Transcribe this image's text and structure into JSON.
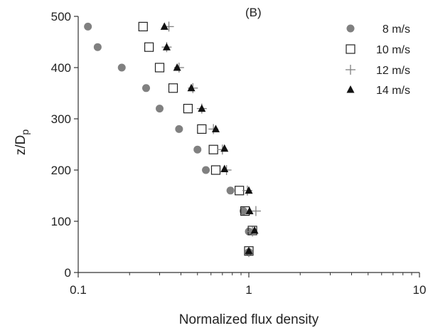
{
  "chart_data": {
    "type": "scatter",
    "panel_label": "(B)",
    "xlabel": "Normalized flux density",
    "ylabel_main": "z/D",
    "ylabel_sub": "p",
    "x_scale": "log",
    "xlim": [
      0.1,
      10
    ],
    "ylim": [
      0,
      500
    ],
    "x_ticks": [
      {
        "value": 0.1,
        "label": "0.1"
      },
      {
        "value": 1,
        "label": "1"
      },
      {
        "value": 10,
        "label": "10"
      }
    ],
    "y_ticks": [
      {
        "value": 0,
        "label": "0"
      },
      {
        "value": 100,
        "label": "100"
      },
      {
        "value": 200,
        "label": "200"
      },
      {
        "value": 300,
        "label": "300"
      },
      {
        "value": 400,
        "label": "400"
      },
      {
        "value": 500,
        "label": "500"
      }
    ],
    "grid": false,
    "legend_position": "top-right",
    "series": [
      {
        "name": "8 m/s",
        "marker": "filled-circle",
        "color": "#808080",
        "points": [
          [
            1.0,
            40
          ],
          [
            1.0,
            80
          ],
          [
            0.93,
            120
          ],
          [
            0.78,
            160
          ],
          [
            0.56,
            200
          ],
          [
            0.5,
            240
          ],
          [
            0.39,
            280
          ],
          [
            0.3,
            320
          ],
          [
            0.25,
            360
          ],
          [
            0.18,
            400
          ],
          [
            0.13,
            440
          ],
          [
            0.114,
            480
          ]
        ]
      },
      {
        "name": "10 m/s",
        "marker": "open-square",
        "color": "#222222",
        "points": [
          [
            1.0,
            42
          ],
          [
            1.05,
            82
          ],
          [
            0.95,
            120
          ],
          [
            0.88,
            160
          ],
          [
            0.64,
            200
          ],
          [
            0.62,
            240
          ],
          [
            0.53,
            280
          ],
          [
            0.44,
            320
          ],
          [
            0.36,
            360
          ],
          [
            0.3,
            400
          ],
          [
            0.26,
            440
          ],
          [
            0.24,
            480
          ]
        ]
      },
      {
        "name": "12 m/s",
        "marker": "plus",
        "color": "#808080",
        "points": [
          [
            1.0,
            40
          ],
          [
            1.05,
            80
          ],
          [
            1.1,
            120
          ],
          [
            0.98,
            160
          ],
          [
            0.74,
            200
          ],
          [
            0.7,
            240
          ],
          [
            0.62,
            280
          ],
          [
            0.53,
            320
          ],
          [
            0.47,
            360
          ],
          [
            0.39,
            400
          ],
          [
            0.33,
            440
          ],
          [
            0.34,
            480
          ]
        ]
      },
      {
        "name": "14 m/s",
        "marker": "filled-triangle",
        "color": "#111111",
        "points": [
          [
            1.0,
            42
          ],
          [
            1.08,
            82
          ],
          [
            1.01,
            120
          ],
          [
            1.0,
            160
          ],
          [
            0.72,
            202
          ],
          [
            0.72,
            242
          ],
          [
            0.64,
            280
          ],
          [
            0.53,
            320
          ],
          [
            0.46,
            360
          ],
          [
            0.38,
            400
          ],
          [
            0.33,
            440
          ],
          [
            0.32,
            480
          ]
        ]
      }
    ]
  }
}
